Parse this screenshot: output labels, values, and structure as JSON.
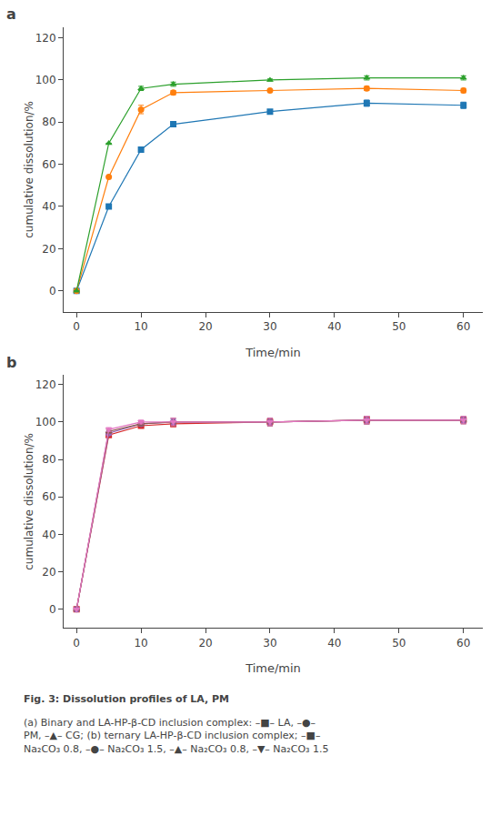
{
  "chart_data": [
    {
      "type": "line",
      "title": "a",
      "x": [
        0,
        5,
        10,
        15,
        30,
        45,
        60
      ],
      "series": [
        {
          "values": [
            0,
            40,
            67,
            79,
            85,
            89,
            88
          ],
          "errors": [
            0,
            0,
            0,
            0,
            0,
            1.5,
            1.5
          ],
          "marker": "square"
        },
        {
          "values": [
            0,
            54,
            86,
            94,
            95,
            96,
            95
          ],
          "errors": [
            0,
            0,
            2,
            1,
            0,
            1,
            1
          ],
          "marker": "circle"
        },
        {
          "values": [
            0,
            70,
            96,
            98,
            100,
            101,
            101
          ],
          "errors": [
            0,
            0,
            1,
            1,
            0.5,
            1,
            1
          ],
          "marker": "triangle-up"
        }
      ],
      "xlabel": "Time/min",
      "ylabel": "cumulative dissolution/%",
      "xlim": [
        -2,
        63
      ],
      "xticks": [
        0,
        10,
        20,
        30,
        40,
        50,
        60
      ],
      "ylim": [
        -10,
        125
      ],
      "yticks": [
        0,
        20,
        40,
        60,
        80,
        100,
        120
      ],
      "grid": false
    },
    {
      "type": "line",
      "title": "b",
      "x": [
        0,
        5,
        10,
        15,
        30,
        45,
        60
      ],
      "series": [
        {
          "values": [
            0,
            93,
            98,
            99,
            100,
            101,
            101
          ],
          "errors": [
            0,
            1,
            1,
            1.5,
            2,
            2,
            1.5
          ],
          "marker": "square"
        },
        {
          "values": [
            0,
            94,
            99,
            100,
            100,
            101,
            101
          ],
          "errors": [
            0,
            1,
            1,
            1.5,
            2,
            2,
            1.5
          ],
          "marker": "circle"
        },
        {
          "values": [
            0,
            95,
            99,
            100,
            100,
            101,
            101
          ],
          "errors": [
            0,
            1,
            1,
            2,
            2,
            2,
            2
          ],
          "marker": "triangle-up"
        },
        {
          "values": [
            0,
            96,
            100,
            100,
            100,
            101,
            101
          ],
          "errors": [
            0,
            1,
            1,
            2,
            2,
            2,
            2
          ],
          "marker": "triangle-down"
        }
      ],
      "xlabel": "Time/min",
      "ylabel": "cumulative dissolution/%",
      "xlim": [
        -2,
        63
      ],
      "xticks": [
        0,
        10,
        20,
        30,
        40,
        50,
        60
      ],
      "ylim": [
        -10,
        125
      ],
      "yticks": [
        0,
        20,
        40,
        60,
        80,
        100,
        120
      ],
      "grid": false,
      "annotations": [
        "Fig. 3: Dissolution profiles of LA, PM",
        "(a) Binary and LA-HP-β-CD inclusion complex: –■– LA, –●–",
        "PM, –▲– CG; (b) ternary LA-HP-β-CD inclusion complex; –■–",
        "Na₂CO₃ 0.8, –●– Na₂CO₃ 1.5, –▲– Na₂CO₃ 0.8, –▼– Na₂CO₃ 1.5"
      ]
    }
  ]
}
